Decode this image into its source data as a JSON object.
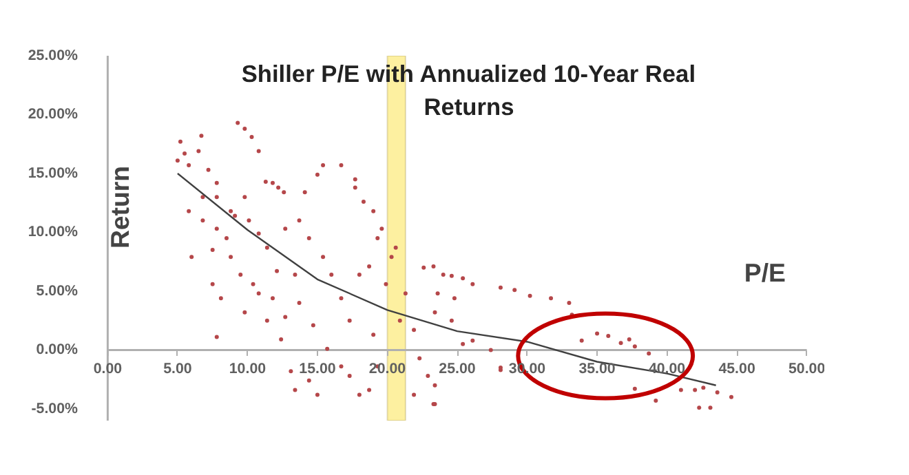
{
  "chart_data": {
    "type": "scatter",
    "title": "Shiller P/E with Annualized 10-Year Real Returns",
    "xlabel": "P/E",
    "ylabel": "Return",
    "grid": false,
    "xlim": [
      0,
      50
    ],
    "ylim": [
      -6,
      25
    ],
    "xticks": [
      {
        "value": 0,
        "label": "0.00"
      },
      {
        "value": 5,
        "label": "5.00"
      },
      {
        "value": 10,
        "label": "10.00"
      },
      {
        "value": 15,
        "label": "15.00"
      },
      {
        "value": 20,
        "label": "20.00"
      },
      {
        "value": 25,
        "label": "25.00"
      },
      {
        "value": 30,
        "label": "30.00"
      },
      {
        "value": 35,
        "label": "35.00"
      },
      {
        "value": 40,
        "label": "40.00"
      },
      {
        "value": 45,
        "label": "45.00"
      },
      {
        "value": 50,
        "label": "50.00"
      }
    ],
    "yticks": [
      {
        "value": -5,
        "label": "-5.00%"
      },
      {
        "value": 0,
        "label": "0.00%"
      },
      {
        "value": 5,
        "label": "5.00%"
      },
      {
        "value": 10,
        "label": "10.00%"
      },
      {
        "value": 15,
        "label": "15.00%"
      },
      {
        "value": 20,
        "label": "20.00%"
      },
      {
        "value": 25,
        "label": "25.00%"
      }
    ],
    "bands": [
      {
        "axis": "x",
        "from": 20,
        "to": 21.3,
        "color": "#fdf0a0"
      }
    ],
    "series": [
      {
        "marker": "circle",
        "color": "#b5474a",
        "x": [
          5.2,
          5.5,
          5.0,
          5.8,
          6.7,
          6.5,
          7.2,
          7.8,
          9.3,
          9.8,
          10.3,
          10.8,
          5.8,
          6.8,
          6.0,
          7.5,
          7.8,
          8.5,
          9.1,
          9.5,
          10.1,
          10.8,
          11.3,
          11.8,
          12.2,
          12.6,
          11.4,
          12.1,
          10.8,
          9.8,
          11.4,
          12.4,
          13.1,
          13.4,
          14.4,
          15.0,
          15.4,
          15.0,
          16.7,
          17.7,
          14.1,
          13.7,
          14.4,
          15.4,
          16.0,
          13.4,
          13.7,
          12.7,
          14.7,
          15.7,
          16.7,
          17.3,
          18.0,
          18.7,
          17.3,
          16.7,
          18.0,
          18.7,
          19.3,
          19.6,
          19.0,
          18.3,
          17.7,
          19.9,
          20.3,
          20.6,
          20.9,
          21.3,
          21.9,
          22.3,
          22.9,
          23.3,
          21.9,
          19.3,
          19.0,
          23.3,
          24.0,
          23.6,
          24.6,
          7.5,
          8.8,
          8.1,
          10.4,
          11.8,
          8.8,
          7.8,
          9.8,
          7.8,
          6.8,
          12.7,
          22.6,
          24.6,
          25.4,
          26.1,
          28.1,
          29.1,
          30.2,
          31.7,
          33.0,
          33.2,
          24.8,
          23.4,
          26.1,
          27.4,
          28.1,
          28.1,
          25.4,
          23.4,
          23.4,
          33.9,
          35.0,
          35.8,
          36.7,
          37.3,
          37.7,
          38.7,
          37.7,
          39.2,
          41.0,
          42.0,
          42.6,
          42.3,
          43.1,
          43.6,
          44.6
        ],
        "values": [
          17.7,
          16.7,
          16.1,
          15.7,
          18.2,
          16.9,
          15.3,
          14.2,
          19.3,
          18.8,
          18.1,
          16.9,
          11.8,
          11.0,
          7.9,
          8.5,
          1.1,
          9.5,
          11.4,
          6.4,
          11.0,
          9.9,
          14.3,
          14.2,
          13.8,
          13.4,
          8.7,
          6.7,
          4.8,
          3.2,
          2.5,
          0.9,
          -1.8,
          -3.4,
          -2.6,
          -3.8,
          15.7,
          14.9,
          15.7,
          14.5,
          13.4,
          11.0,
          9.5,
          7.9,
          6.4,
          6.4,
          4.0,
          2.8,
          2.1,
          0.1,
          -1.4,
          -2.2,
          -3.8,
          -3.4,
          2.5,
          4.4,
          6.4,
          7.1,
          9.5,
          10.3,
          11.8,
          12.6,
          13.8,
          5.6,
          7.9,
          8.7,
          2.5,
          4.8,
          1.7,
          -0.7,
          -2.2,
          -4.6,
          -3.8,
          -1.4,
          1.3,
          7.1,
          6.4,
          4.8,
          2.5,
          5.6,
          7.9,
          4.4,
          5.6,
          4.4,
          11.8,
          10.3,
          13.0,
          13.0,
          13.0,
          10.3,
          7.0,
          6.3,
          6.1,
          5.6,
          5.3,
          5.1,
          4.6,
          4.4,
          4.0,
          3.0,
          4.4,
          3.2,
          0.8,
          0.0,
          -1.5,
          -1.7,
          0.5,
          -3.0,
          -4.6,
          0.8,
          1.4,
          1.2,
          0.6,
          0.9,
          0.3,
          -0.3,
          -3.3,
          -4.3,
          -3.4,
          -3.4,
          -3.2,
          -4.9,
          -4.9,
          -3.6,
          -4.0
        ]
      },
      {
        "type": "line",
        "color": "#404040",
        "x": [
          5,
          10,
          15,
          20,
          25,
          30,
          35,
          40,
          43.5
        ],
        "values": [
          15.0,
          10.2,
          6.0,
          3.4,
          1.6,
          0.7,
          -1.0,
          -2.0,
          -3.0
        ]
      }
    ]
  }
}
